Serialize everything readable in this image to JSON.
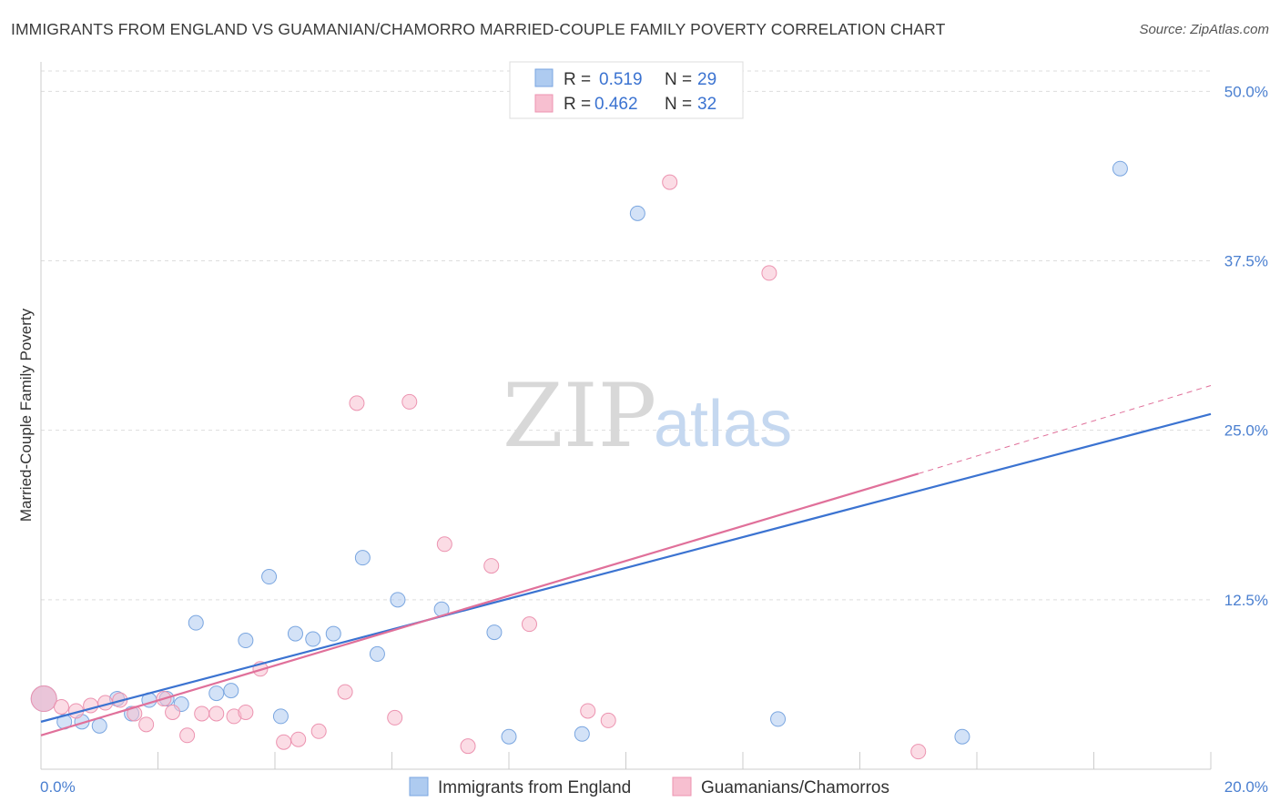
{
  "header": {
    "title": "IMMIGRANTS FROM ENGLAND VS GUAMANIAN/CHAMORRO MARRIED-COUPLE FAMILY POVERTY CORRELATION CHART",
    "source": "Source: ZipAtlas.com"
  },
  "watermark": {
    "zip": "ZIP",
    "atlas": "atlas"
  },
  "legend": {
    "r_label": "R =",
    "n_label": "N =",
    "rows": [
      {
        "series": "england",
        "r": "0.519",
        "n": "29"
      },
      {
        "series": "guamanian",
        "r": "0.462",
        "n": "32"
      }
    ]
  },
  "colors": {
    "england_fill": "#aecbf0",
    "england_stroke": "#7aa6e0",
    "england_line": "#3b73d1",
    "guam_fill": "#f7bfd0",
    "guam_stroke": "#ec93b0",
    "guam_line": "#e0709a",
    "grid": "#dddddd",
    "tick_text": "#4a7fd0"
  },
  "chart_data": {
    "type": "scatter",
    "title": "IMMIGRANTS FROM ENGLAND VS GUAMANIAN/CHAMORRO MARRIED-COUPLE FAMILY POVERTY CORRELATION CHART",
    "xlabel": "",
    "ylabel": "Married-Couple Family Poverty",
    "xlim": [
      0,
      20
    ],
    "ylim": [
      0,
      51.5
    ],
    "x_tick_labels": [
      "0.0%",
      "20.0%"
    ],
    "y_ticks": [
      12.5,
      25.0,
      37.5,
      50.0
    ],
    "y_tick_labels": [
      "12.5%",
      "25.0%",
      "37.5%",
      "50.0%"
    ],
    "grid": true,
    "legend_position": "top-center",
    "series": [
      {
        "name": "Immigrants from England",
        "points": [
          {
            "x": 0.05,
            "y": 5.2
          },
          {
            "x": 0.4,
            "y": 3.5
          },
          {
            "x": 0.7,
            "y": 3.5
          },
          {
            "x": 1.0,
            "y": 3.2
          },
          {
            "x": 1.3,
            "y": 5.2
          },
          {
            "x": 1.55,
            "y": 4.1
          },
          {
            "x": 1.85,
            "y": 5.1
          },
          {
            "x": 2.15,
            "y": 5.2
          },
          {
            "x": 2.4,
            "y": 4.8
          },
          {
            "x": 2.65,
            "y": 10.8
          },
          {
            "x": 3.0,
            "y": 5.6
          },
          {
            "x": 3.25,
            "y": 5.8
          },
          {
            "x": 3.5,
            "y": 9.5
          },
          {
            "x": 3.9,
            "y": 14.2
          },
          {
            "x": 4.1,
            "y": 3.9
          },
          {
            "x": 4.35,
            "y": 10.0
          },
          {
            "x": 4.65,
            "y": 9.6
          },
          {
            "x": 5.0,
            "y": 10.0
          },
          {
            "x": 5.5,
            "y": 15.6
          },
          {
            "x": 5.75,
            "y": 8.5
          },
          {
            "x": 6.1,
            "y": 12.5
          },
          {
            "x": 6.85,
            "y": 11.8
          },
          {
            "x": 7.75,
            "y": 10.1
          },
          {
            "x": 8.0,
            "y": 2.4
          },
          {
            "x": 9.25,
            "y": 2.6
          },
          {
            "x": 10.2,
            "y": 41.0
          },
          {
            "x": 12.6,
            "y": 3.7
          },
          {
            "x": 15.75,
            "y": 2.4
          },
          {
            "x": 18.45,
            "y": 44.3
          }
        ]
      },
      {
        "name": "Guamanians/Chamorros",
        "points": [
          {
            "x": 0.05,
            "y": 5.2
          },
          {
            "x": 0.35,
            "y": 4.6
          },
          {
            "x": 0.6,
            "y": 4.3
          },
          {
            "x": 0.85,
            "y": 4.7
          },
          {
            "x": 1.1,
            "y": 4.9
          },
          {
            "x": 1.35,
            "y": 5.1
          },
          {
            "x": 1.6,
            "y": 4.1
          },
          {
            "x": 1.8,
            "y": 3.3
          },
          {
            "x": 2.1,
            "y": 5.2
          },
          {
            "x": 2.25,
            "y": 4.2
          },
          {
            "x": 2.5,
            "y": 2.5
          },
          {
            "x": 2.75,
            "y": 4.1
          },
          {
            "x": 3.0,
            "y": 4.1
          },
          {
            "x": 3.3,
            "y": 3.9
          },
          {
            "x": 3.5,
            "y": 4.2
          },
          {
            "x": 3.75,
            "y": 7.4
          },
          {
            "x": 4.15,
            "y": 2.0
          },
          {
            "x": 4.4,
            "y": 2.2
          },
          {
            "x": 4.75,
            "y": 2.8
          },
          {
            "x": 5.2,
            "y": 5.7
          },
          {
            "x": 5.4,
            "y": 27.0
          },
          {
            "x": 6.05,
            "y": 3.8
          },
          {
            "x": 6.3,
            "y": 27.1
          },
          {
            "x": 6.9,
            "y": 16.6
          },
          {
            "x": 7.3,
            "y": 1.7
          },
          {
            "x": 7.7,
            "y": 15.0
          },
          {
            "x": 8.35,
            "y": 10.7
          },
          {
            "x": 9.35,
            "y": 4.3
          },
          {
            "x": 9.7,
            "y": 3.6
          },
          {
            "x": 10.75,
            "y": 43.3
          },
          {
            "x": 12.45,
            "y": 36.6
          },
          {
            "x": 15.0,
            "y": 1.3
          }
        ]
      }
    ],
    "trend_lines": [
      {
        "name": "Immigrants from England",
        "x0": 0,
        "y0": 3.5,
        "x1": 20,
        "y1": 26.2,
        "dashed_until": null
      },
      {
        "name": "Guamanians/Chamorros",
        "x0": 0,
        "y0": 2.5,
        "x1": 15.0,
        "y1": 21.8,
        "dashed_x1": 20,
        "dashed_y1": 28.3
      }
    ]
  }
}
